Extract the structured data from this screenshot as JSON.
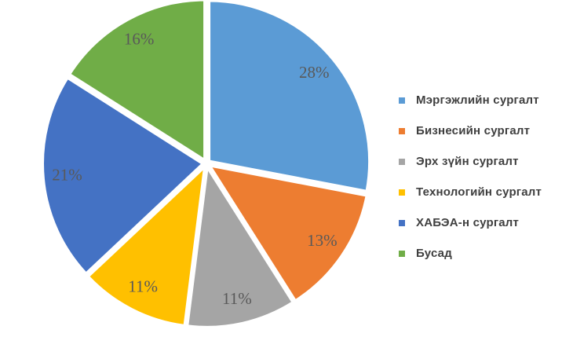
{
  "chart_data": {
    "type": "pie",
    "title": "",
    "categories": [
      "Мэргэжлийн сургалт",
      "Бизнесийн сургалт",
      "Эрх зүйн сургалт",
      "Технологийн сургалт",
      "ХАБЭА-н сургалт",
      "Бусад"
    ],
    "values": [
      28,
      13,
      11,
      11,
      21,
      16
    ],
    "labels": [
      "28%",
      "13%",
      "11%",
      "11%",
      "21%",
      "16%"
    ],
    "colors": [
      "#5B9BD5",
      "#ED7D31",
      "#A5A5A5",
      "#FFC000",
      "#4472C4",
      "#70AD47"
    ],
    "unit": "%",
    "start_angle_deg": 0,
    "direction": "clockwise",
    "legend_position": "right",
    "slice_border_color": "#FFFFFF",
    "label_color": "#595959",
    "legend_text_color": "#3F3F3F",
    "background": "#FFFFFF"
  }
}
